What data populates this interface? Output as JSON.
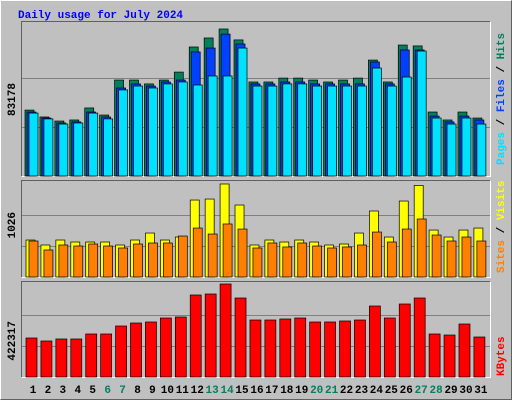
{
  "title": "Daily usage for July 2024",
  "chart_data": [
    {
      "type": "bar",
      "ylim": [
        0,
        83178
      ],
      "yticks": [
        83178
      ],
      "series": [
        {
          "name": "Hits",
          "color": "#00805c",
          "values": [
            37300,
            33400,
            31100,
            31700,
            38500,
            34500,
            54300,
            54300,
            52100,
            54300,
            58800,
            73000,
            78100,
            83178,
            77000,
            53200,
            53200,
            55400,
            55400,
            54300,
            53200,
            54300,
            55400,
            65600,
            53200,
            74100,
            73600,
            36200,
            31700,
            36200,
            32800
          ]
        },
        {
          "name": "Files",
          "color": "#0040ff",
          "values": [
            36200,
            32800,
            30000,
            30600,
            36200,
            33400,
            49800,
            52100,
            50900,
            53200,
            54300,
            70200,
            72400,
            80300,
            74700,
            52100,
            52100,
            53200,
            53200,
            52100,
            52100,
            52100,
            52100,
            64500,
            52100,
            71300,
            71300,
            33900,
            30600,
            33900,
            31700
          ]
        },
        {
          "name": "Pages",
          "color": "#00e0ff",
          "values": [
            35600,
            32300,
            29400,
            30000,
            35600,
            32300,
            48700,
            50900,
            49800,
            52100,
            53200,
            51500,
            56600,
            56600,
            72400,
            50900,
            50900,
            52100,
            52100,
            50900,
            50900,
            50900,
            50900,
            61100,
            50900,
            56000,
            70700,
            32800,
            29400,
            32800,
            29400
          ]
        }
      ]
    },
    {
      "type": "bar",
      "ylim": [
        0,
        1026
      ],
      "yticks": [
        1026
      ],
      "series": [
        {
          "name": "Visits",
          "color": "#ffff00",
          "values": [
            408,
            353,
            408,
            386,
            386,
            386,
            353,
            408,
            485,
            408,
            441,
            849,
            860,
            1026,
            794,
            353,
            408,
            386,
            408,
            386,
            353,
            364,
            485,
            728,
            441,
            838,
            1010,
            518,
            441,
            518,
            540
          ]
        },
        {
          "name": "Sites",
          "color": "#ff8000",
          "values": [
            397,
            298,
            353,
            342,
            364,
            342,
            320,
            364,
            375,
            375,
            452,
            540,
            474,
            585,
            529,
            320,
            375,
            331,
            375,
            342,
            320,
            331,
            353,
            496,
            386,
            529,
            640,
            463,
            397,
            441,
            397
          ]
        }
      ]
    },
    {
      "type": "bar",
      "ylim": [
        0,
        422317
      ],
      "yticks": [
        422317
      ],
      "categories": [
        "1",
        "2",
        "3",
        "4",
        "5",
        "6",
        "7",
        "8",
        "9",
        "10",
        "11",
        "12",
        "13",
        "14",
        "15",
        "16",
        "17",
        "18",
        "19",
        "20",
        "21",
        "22",
        "23",
        "24",
        "25",
        "26",
        "27",
        "28",
        "29",
        "30",
        "31"
      ],
      "category_colors": [
        "#000000",
        "#000000",
        "#000000",
        "#000000",
        "#000000",
        "#00805c",
        "#00805c",
        "#000000",
        "#000000",
        "#000000",
        "#000000",
        "#000000",
        "#00805c",
        "#00805c",
        "#000000",
        "#000000",
        "#000000",
        "#000000",
        "#000000",
        "#00805c",
        "#00805c",
        "#000000",
        "#000000",
        "#000000",
        "#000000",
        "#000000",
        "#00805c",
        "#00805c",
        "#000000",
        "#000000",
        "#000000"
      ],
      "series": [
        {
          "name": "KBytes",
          "color": "#ff0000",
          "values": [
            177100,
            163500,
            172600,
            172600,
            195300,
            195300,
            231600,
            245200,
            249800,
            267900,
            272500,
            372400,
            376900,
            422317,
            358700,
            258800,
            258800,
            263400,
            267900,
            249800,
            249800,
            254300,
            258800,
            322400,
            267900,
            331500,
            358700,
            195300,
            190700,
            240700,
            181600
          ]
        }
      ]
    }
  ]
}
